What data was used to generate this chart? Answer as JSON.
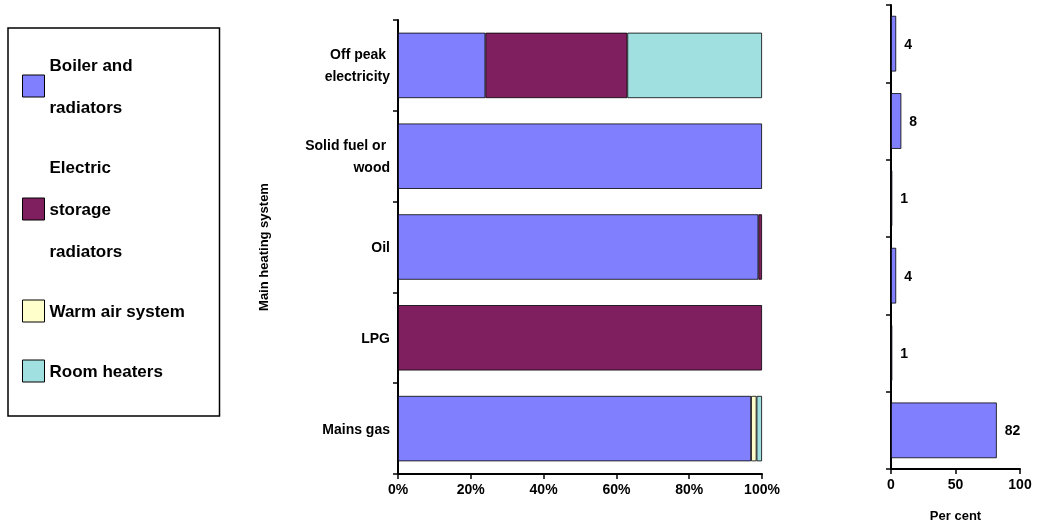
{
  "chart_data": [
    {
      "type": "bar",
      "orientation": "horizontal",
      "stacked": true,
      "ylabel": "Main heating system",
      "categories": [
        "Off peak electricity",
        "Solid fuel or wood",
        "Oil",
        "LPG",
        "Mains gas"
      ],
      "xlim": [
        0,
        100
      ],
      "xticks": [
        {
          "value": 0,
          "label": "0%"
        },
        {
          "value": 20,
          "label": "20%"
        },
        {
          "value": 40,
          "label": "40%"
        },
        {
          "value": 60,
          "label": "60%"
        },
        {
          "value": 80,
          "label": "80%"
        },
        {
          "value": 100,
          "label": "100%"
        }
      ],
      "legend": "left",
      "grid": false,
      "series": [
        {
          "name": "Boiler and radiators",
          "color": "#8080ff",
          "values": [
            24,
            100,
            99,
            null,
            97
          ]
        },
        {
          "name": "Electric storage radiators",
          "color": "#7f1f5f",
          "values": [
            39,
            null,
            1,
            100,
            null
          ]
        },
        {
          "name": "Warm air system",
          "color": "#ffffcc",
          "values": [
            null,
            null,
            null,
            null,
            1.5
          ]
        },
        {
          "name": "Room heaters",
          "color": "#a0e0e0",
          "values": [
            37,
            null,
            null,
            null,
            1.5
          ]
        }
      ]
    },
    {
      "type": "bar",
      "orientation": "horizontal",
      "xlabel": "Per cent",
      "categories": [
        null,
        null,
        null,
        null,
        null,
        null
      ],
      "values": [
        4,
        8,
        1,
        4,
        1,
        82
      ],
      "color": "#8080ff",
      "xlim": [
        0,
        100
      ],
      "xticks": [
        0,
        50,
        100
      ],
      "data_labels": true,
      "grid": false
    }
  ]
}
